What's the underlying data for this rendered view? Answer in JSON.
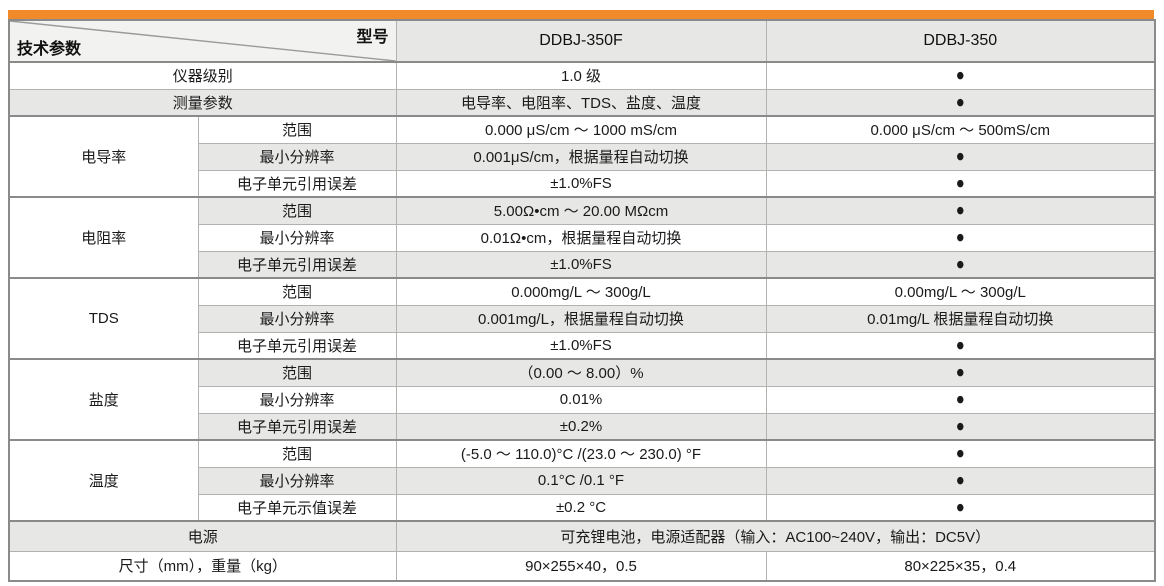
{
  "accent_color": "#f18a2b",
  "stripe_color": "#e7e7e5",
  "bullet": "●",
  "table": {
    "corner": {
      "top_right": "型号",
      "bottom_left": "技术参数"
    },
    "models": [
      "DDBJ-350F",
      "DDBJ-350"
    ],
    "simple_rows": [
      {
        "label": "仪器级别",
        "ddbj_350f": "1.0 级",
        "ddbj_350": "●"
      },
      {
        "label": "测量参数",
        "ddbj_350f": "电导率、电阻率、TDS、盐度、温度",
        "ddbj_350": "●"
      }
    ],
    "groups": [
      {
        "name": "电导率",
        "rows": [
          {
            "param": "范围",
            "ddbj_350f": "0.000 μS/cm ～ 1000 mS/cm",
            "ddbj_350": "0.000 μS/cm ～ 500mS/cm"
          },
          {
            "param": "最小分辨率",
            "ddbj_350f": "0.001μS/cm，根据量程自动切换",
            "ddbj_350": "●"
          },
          {
            "param": "电子单元引用误差",
            "ddbj_350f": "±1.0%FS",
            "ddbj_350": "●"
          }
        ]
      },
      {
        "name": "电阻率",
        "rows": [
          {
            "param": "范围",
            "ddbj_350f": "5.00Ω•cm ～ 20.00 MΩcm",
            "ddbj_350": "●"
          },
          {
            "param": "最小分辨率",
            "ddbj_350f": "0.01Ω•cm，根据量程自动切换",
            "ddbj_350": "●"
          },
          {
            "param": "电子单元引用误差",
            "ddbj_350f": "±1.0%FS",
            "ddbj_350": "●"
          }
        ]
      },
      {
        "name": "TDS",
        "rows": [
          {
            "param": "范围",
            "ddbj_350f": "0.000mg/L ～ 300g/L",
            "ddbj_350": "0.00mg/L ～ 300g/L"
          },
          {
            "param": "最小分辨率",
            "ddbj_350f": "0.001mg/L，根据量程自动切换",
            "ddbj_350": "0.01mg/L 根据量程自动切换"
          },
          {
            "param": "电子单元引用误差",
            "ddbj_350f": "±1.0%FS",
            "ddbj_350": "●"
          }
        ]
      },
      {
        "name": "盐度",
        "rows": [
          {
            "param": "范围",
            "ddbj_350f": "（0.00 ～ 8.00）%",
            "ddbj_350": "●"
          },
          {
            "param": "最小分辨率",
            "ddbj_350f": "0.01%",
            "ddbj_350": "●"
          },
          {
            "param": "电子单元引用误差",
            "ddbj_350f": "±0.2%",
            "ddbj_350": "●"
          }
        ]
      },
      {
        "name": "温度",
        "rows": [
          {
            "param": "范围",
            "ddbj_350f": "(-5.0 ～ 110.0)°C /(23.0 ～ 230.0) °F",
            "ddbj_350": "●"
          },
          {
            "param": "最小分辨率",
            "ddbj_350f": "0.1°C /0.1 °F",
            "ddbj_350": "●"
          },
          {
            "param": "电子单元示值误差",
            "ddbj_350f": "±0.2 °C",
            "ddbj_350": "●"
          }
        ]
      }
    ],
    "power_row": {
      "label": "电源",
      "value": "可充锂电池，电源适配器（输入：AC100~240V，输出：DC5V）"
    },
    "size_row": {
      "label": "尺寸（mm），重量（kg）",
      "ddbj_350f": "90×255×40，0.5",
      "ddbj_350": "80×225×35，0.4"
    }
  }
}
